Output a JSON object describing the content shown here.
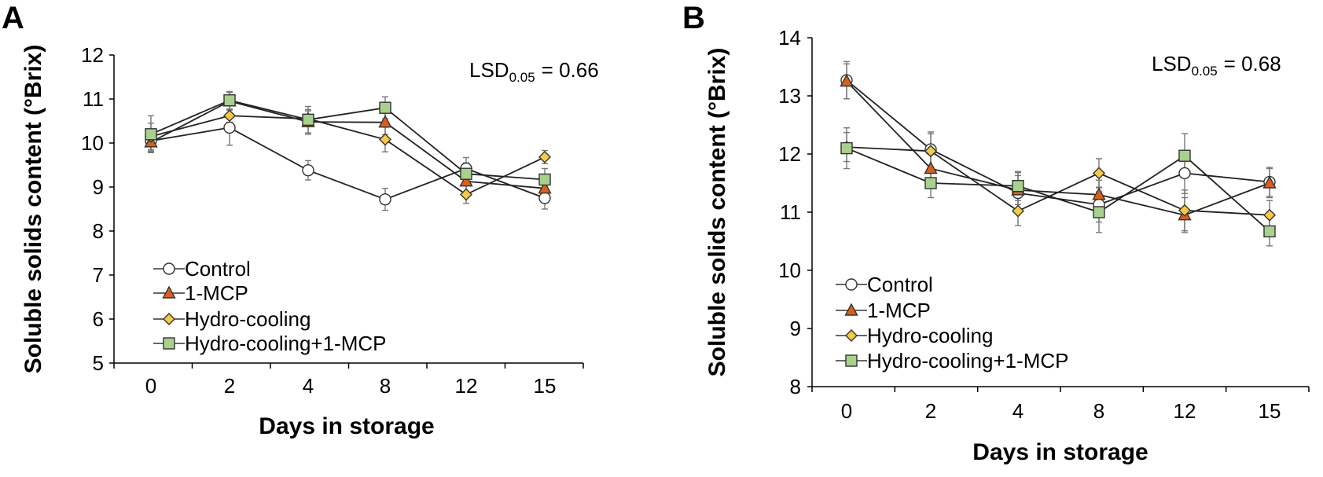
{
  "chart_data": [
    {
      "panel": "A",
      "type": "line",
      "ylabel": "Soluble solids content (°Brix)",
      "xlabel": "Days in storage",
      "categories": [
        "0",
        "2",
        "4",
        "8",
        "12",
        "15"
      ],
      "ylim": [
        5,
        12
      ],
      "yticks": [
        5,
        6,
        7,
        8,
        9,
        10,
        11,
        12
      ],
      "lsd": {
        "prefix": "LSD",
        "subscript": "0.05",
        "value": "= 0.66"
      },
      "legend_position": "bottom-left",
      "series": [
        {
          "name": "Control",
          "marker": "circle",
          "color": "#ffffff",
          "values": [
            10.05,
            10.35,
            9.38,
            8.72,
            9.42,
            8.75
          ],
          "errors": [
            0.25,
            0.4,
            0.22,
            0.25,
            0.25,
            0.25
          ]
        },
        {
          "name": "1-MCP",
          "marker": "triangle",
          "color": "#d9601a",
          "values": [
            10.02,
            10.95,
            10.48,
            10.47,
            9.13,
            8.97
          ],
          "errors": [
            0.2,
            0.2,
            0.28,
            0.28,
            0.25,
            0.2
          ]
        },
        {
          "name": "Hydro-cooling",
          "marker": "diamond",
          "color": "#f7c948",
          "values": [
            10.15,
            10.62,
            10.55,
            10.08,
            8.83,
            9.68
          ],
          "errors": [
            0.3,
            0.15,
            0.18,
            0.28,
            0.2,
            0.15
          ]
        },
        {
          "name": "Hydro-cooling+1-MCP",
          "marker": "square",
          "color": "#a9d18e",
          "values": [
            10.2,
            10.97,
            10.53,
            10.8,
            9.3,
            9.17
          ],
          "errors": [
            0.42,
            0.2,
            0.3,
            0.25,
            0.25,
            0.25
          ]
        }
      ]
    },
    {
      "panel": "B",
      "type": "line",
      "ylabel": "Soluble solids content (°Brix)",
      "xlabel": "Days in storage",
      "categories": [
        "0",
        "2",
        "4",
        "8",
        "12",
        "15"
      ],
      "ylim": [
        8,
        14
      ],
      "yticks": [
        8,
        9,
        10,
        11,
        12,
        13,
        14
      ],
      "lsd": {
        "prefix": "LSD",
        "subscript": "0.05",
        "value": "= 0.68"
      },
      "legend_position": "bottom-left",
      "series": [
        {
          "name": "Control",
          "marker": "circle",
          "color": "#ffffff",
          "values": [
            13.27,
            12.08,
            11.33,
            11.13,
            11.67,
            11.52
          ],
          "errors": [
            0.32,
            0.3,
            0.35,
            0.3,
            0.35,
            0.25
          ]
        },
        {
          "name": "1-MCP",
          "marker": "triangle",
          "color": "#d9601a",
          "values": [
            13.25,
            11.75,
            11.38,
            11.3,
            10.95,
            11.5
          ],
          "errors": [
            0.3,
            0.25,
            0.25,
            0.25,
            0.3,
            0.25
          ]
        },
        {
          "name": "Hydro-cooling",
          "marker": "diamond",
          "color": "#f7c948",
          "values": [
            12.12,
            12.05,
            11.02,
            11.67,
            11.03,
            10.95
          ],
          "errors": [
            0.25,
            0.3,
            0.25,
            0.25,
            0.35,
            0.25
          ]
        },
        {
          "name": "Hydro-cooling+1-MCP",
          "marker": "square",
          "color": "#a9d18e",
          "values": [
            12.1,
            11.5,
            11.45,
            11.0,
            11.97,
            10.67
          ],
          "errors": [
            0.35,
            0.25,
            0.25,
            0.35,
            0.38,
            0.25
          ]
        }
      ]
    }
  ]
}
